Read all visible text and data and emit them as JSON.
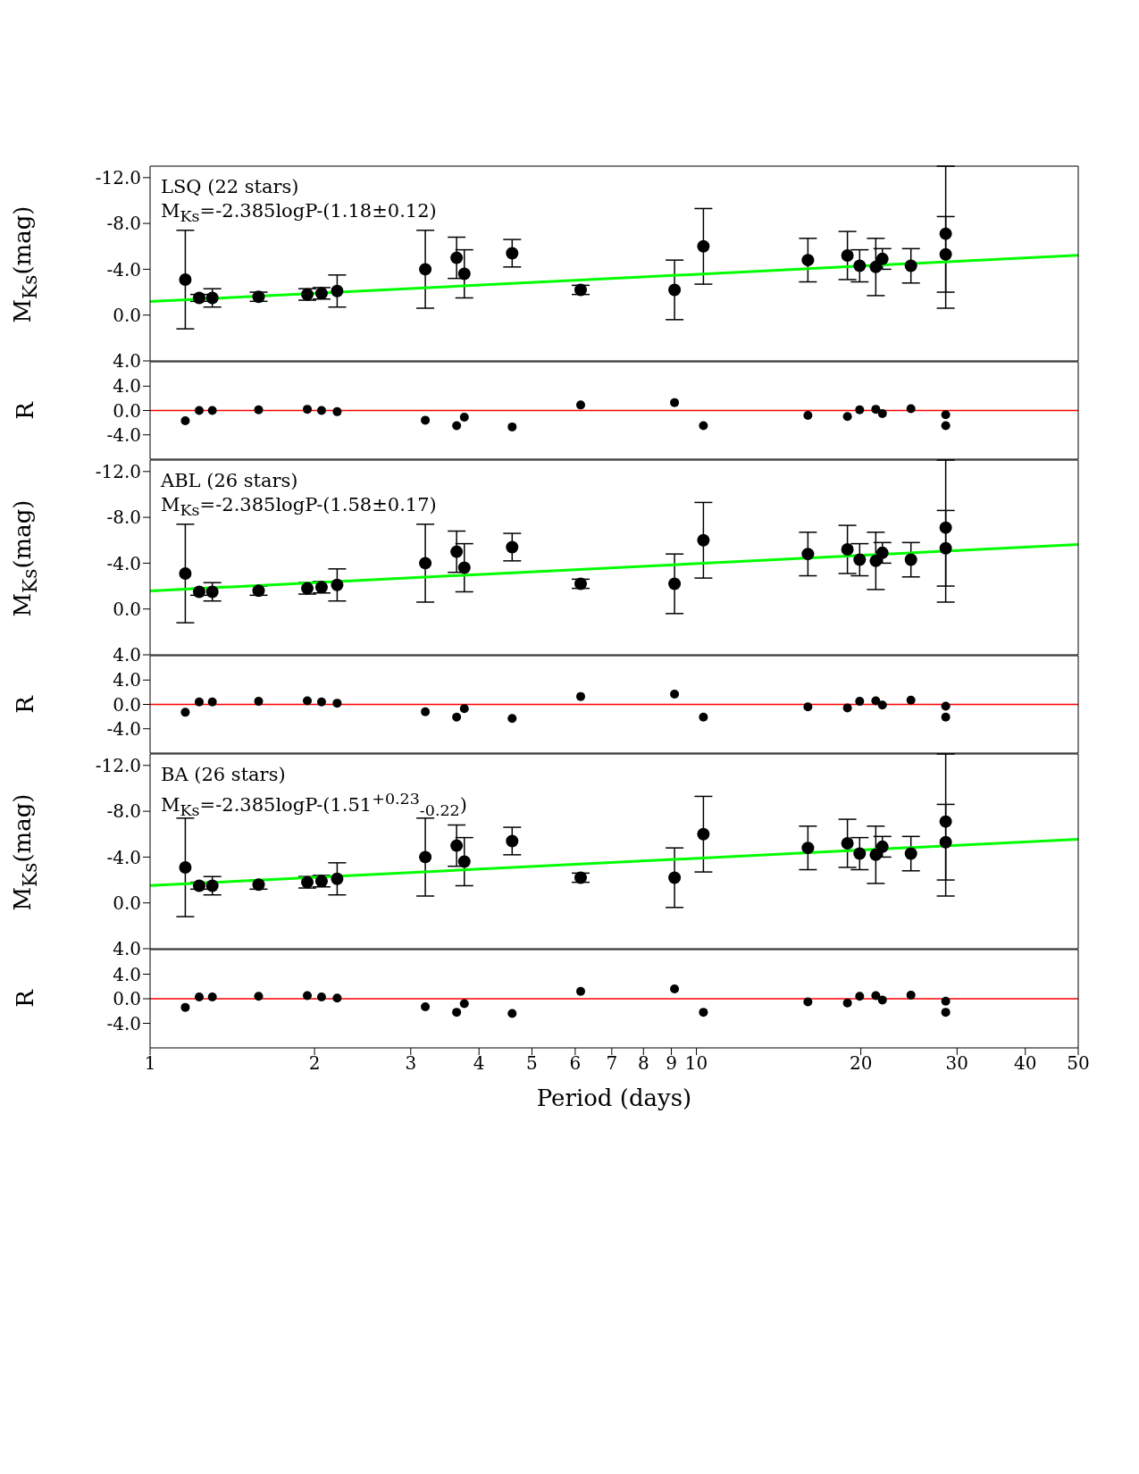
{
  "chart_data": [
    {
      "type": "scatter",
      "ylabel": "M$_{Ks}$(mag)",
      "log": "x",
      "tick_labels": "y",
      "xlim": [
        1,
        50
      ],
      "xticks": [
        1,
        2,
        3,
        4,
        5,
        6,
        7,
        8,
        9,
        10,
        20,
        30,
        40,
        50
      ],
      "ylim": [
        4,
        -13
      ],
      "yticks": [
        {
          "value": -12,
          "label": "-12.0"
        },
        {
          "value": -8,
          "label": "-8.0"
        },
        {
          "value": -4,
          "label": "-4.0"
        },
        {
          "value": 0,
          "label": "0.0"
        },
        {
          "value": 4,
          "label": "4.0"
        }
      ],
      "annotations": [
        "LSQ (22 stars)",
        "M$_{Ks}$=-2.385logP-(1.18±0.12)"
      ],
      "series": [
        {
          "color": "#000000",
          "marker": "circle",
          "x": [
            1.16,
            1.23,
            1.3,
            1.58,
            1.94,
            2.06,
            2.2,
            3.19,
            3.64,
            3.76,
            4.6,
            6.14,
            9.12,
            10.3,
            16.0,
            18.9,
            19.9,
            21.3,
            21.9,
            24.7,
            28.6,
            28.6
          ],
          "values": [
            -3.1,
            -1.5,
            -1.5,
            -1.6,
            -1.8,
            -1.9,
            -2.1,
            -4.0,
            -5.0,
            -3.6,
            -5.4,
            -2.2,
            -2.2,
            -6.0,
            -4.8,
            -5.2,
            -4.3,
            -4.2,
            -4.9,
            -4.3,
            -7.1,
            -5.3
          ],
          "errors": [
            4.3,
            0.3,
            0.8,
            0.4,
            0.5,
            0.5,
            1.4,
            3.4,
            1.8,
            2.1,
            1.2,
            0.4,
            2.6,
            3.3,
            1.9,
            2.1,
            1.4,
            2.5,
            0.9,
            1.5,
            [
              -13,
              -0.6
            ],
            3.3
          ]
        },
        {
          "type": "line",
          "marker": "none",
          "color": "#00ff00",
          "x": [
            1,
            50
          ],
          "values": [
            -1.18,
            -5.23
          ]
        }
      ]
    },
    {
      "type": "scatter",
      "ylabel": "R",
      "log": "x",
      "tick_labels": "y",
      "xlim": [
        1,
        50
      ],
      "xticks": [
        1,
        2,
        3,
        4,
        5,
        6,
        7,
        8,
        9,
        10,
        20,
        30,
        40,
        50
      ],
      "ylim": [
        -8,
        8
      ],
      "yticks": [
        {
          "value": -4,
          "label": "-4.0"
        },
        {
          "value": 0,
          "label": "0.0"
        },
        {
          "value": 4,
          "label": "4.0"
        }
      ],
      "ref_lines": [
        {
          "axis": "y",
          "value": 0,
          "color": "#ff0000"
        }
      ],
      "series": [
        {
          "color": "#000000",
          "marker": "circle",
          "x": [
            1.16,
            1.23,
            1.3,
            1.58,
            1.94,
            2.06,
            2.2,
            3.19,
            3.64,
            3.76,
            4.6,
            6.14,
            9.12,
            10.3,
            16.0,
            18.9,
            19.9,
            21.3,
            21.9,
            24.7,
            28.6,
            28.6
          ],
          "values": [
            -1.7,
            0.0,
            0.0,
            0.1,
            0.2,
            0.0,
            -0.2,
            -1.6,
            -2.5,
            -1.1,
            -2.7,
            0.9,
            1.3,
            -2.5,
            -0.8,
            -1.0,
            0.1,
            0.2,
            -0.5,
            0.3,
            -2.5,
            -0.7
          ]
        }
      ]
    },
    {
      "type": "scatter",
      "ylabel": "M$_{Ks}$(mag)",
      "log": "x",
      "tick_labels": "y",
      "xlim": [
        1,
        50
      ],
      "xticks": [
        1,
        2,
        3,
        4,
        5,
        6,
        7,
        8,
        9,
        10,
        20,
        30,
        40,
        50
      ],
      "ylim": [
        4,
        -13
      ],
      "yticks": [
        {
          "value": -12,
          "label": "-12.0"
        },
        {
          "value": -8,
          "label": "-8.0"
        },
        {
          "value": -4,
          "label": "-4.0"
        },
        {
          "value": 0,
          "label": "0.0"
        },
        {
          "value": 4,
          "label": "4.0"
        }
      ],
      "annotations": [
        "ABL (26 stars)",
        "M$_{Ks}$=-2.385logP-(1.58±0.17)"
      ],
      "series": [
        {
          "color": "#000000",
          "marker": "circle",
          "x": [
            1.16,
            1.23,
            1.3,
            1.58,
            1.94,
            2.06,
            2.2,
            3.19,
            3.64,
            3.76,
            4.6,
            6.14,
            9.12,
            10.3,
            16.0,
            18.9,
            19.9,
            21.3,
            21.9,
            24.7,
            28.6,
            28.6
          ],
          "values": [
            -3.1,
            -1.5,
            -1.5,
            -1.6,
            -1.8,
            -1.9,
            -2.1,
            -4.0,
            -5.0,
            -3.6,
            -5.4,
            -2.2,
            -2.2,
            -6.0,
            -4.8,
            -5.2,
            -4.3,
            -4.2,
            -4.9,
            -4.3,
            -7.1,
            -5.3
          ],
          "errors": [
            4.3,
            0.3,
            0.8,
            0.4,
            0.5,
            0.5,
            1.4,
            3.4,
            1.8,
            2.1,
            1.2,
            0.4,
            2.6,
            3.3,
            1.9,
            2.1,
            1.4,
            2.5,
            0.9,
            1.5,
            [
              -13,
              -0.6
            ],
            3.3
          ]
        },
        {
          "type": "line",
          "marker": "none",
          "color": "#00ff00",
          "x": [
            1,
            50
          ],
          "values": [
            -1.58,
            -5.63
          ]
        }
      ]
    },
    {
      "type": "scatter",
      "ylabel": "R",
      "log": "x",
      "tick_labels": "y",
      "xlim": [
        1,
        50
      ],
      "xticks": [
        1,
        2,
        3,
        4,
        5,
        6,
        7,
        8,
        9,
        10,
        20,
        30,
        40,
        50
      ],
      "ylim": [
        -8,
        8
      ],
      "yticks": [
        {
          "value": -4,
          "label": "-4.0"
        },
        {
          "value": 0,
          "label": "0.0"
        },
        {
          "value": 4,
          "label": "4.0"
        }
      ],
      "ref_lines": [
        {
          "axis": "y",
          "value": 0,
          "color": "#ff0000"
        }
      ],
      "series": [
        {
          "color": "#000000",
          "marker": "circle",
          "x": [
            1.16,
            1.23,
            1.3,
            1.58,
            1.94,
            2.06,
            2.2,
            3.19,
            3.64,
            3.76,
            4.6,
            6.14,
            9.12,
            10.3,
            16.0,
            18.9,
            19.9,
            21.3,
            21.9,
            24.7,
            28.6,
            28.6
          ],
          "values": [
            -1.3,
            0.4,
            0.4,
            0.5,
            0.6,
            0.4,
            0.2,
            -1.2,
            -2.1,
            -0.7,
            -2.3,
            1.3,
            1.7,
            -2.1,
            -0.4,
            -0.6,
            0.5,
            0.6,
            -0.1,
            0.7,
            -2.1,
            -0.3
          ]
        }
      ]
    },
    {
      "type": "scatter",
      "ylabel": "M$_{Ks}$(mag)",
      "log": "x",
      "tick_labels": "y",
      "xlim": [
        1,
        50
      ],
      "xticks": [
        1,
        2,
        3,
        4,
        5,
        6,
        7,
        8,
        9,
        10,
        20,
        30,
        40,
        50
      ],
      "ylim": [
        4,
        -13
      ],
      "yticks": [
        {
          "value": -12,
          "label": "-12.0"
        },
        {
          "value": -8,
          "label": "-8.0"
        },
        {
          "value": -4,
          "label": "-4.0"
        },
        {
          "value": 0,
          "label": "0.0"
        },
        {
          "value": 4,
          "label": "4.0"
        }
      ],
      "annotations": [
        "BA (26 stars)",
        "M$_{Ks}$=-2.385logP-(1.51$^{+0.23}$$_{-0.22}$)"
      ],
      "series": [
        {
          "color": "#000000",
          "marker": "circle",
          "x": [
            1.16,
            1.23,
            1.3,
            1.58,
            1.94,
            2.06,
            2.2,
            3.19,
            3.64,
            3.76,
            4.6,
            6.14,
            9.12,
            10.3,
            16.0,
            18.9,
            19.9,
            21.3,
            21.9,
            24.7,
            28.6,
            28.6
          ],
          "values": [
            -3.1,
            -1.5,
            -1.5,
            -1.6,
            -1.8,
            -1.9,
            -2.1,
            -4.0,
            -5.0,
            -3.6,
            -5.4,
            -2.2,
            -2.2,
            -6.0,
            -4.8,
            -5.2,
            -4.3,
            -4.2,
            -4.9,
            -4.3,
            -7.1,
            -5.3
          ],
          "errors": [
            4.3,
            0.3,
            0.8,
            0.4,
            0.5,
            0.5,
            1.4,
            3.4,
            1.8,
            2.1,
            1.2,
            0.4,
            2.6,
            3.3,
            1.9,
            2.1,
            1.4,
            2.5,
            0.9,
            1.5,
            [
              -13,
              -0.6
            ],
            3.3
          ]
        },
        {
          "type": "line",
          "marker": "none",
          "color": "#00ff00",
          "x": [
            1,
            50
          ],
          "values": [
            -1.51,
            -5.56
          ]
        }
      ]
    },
    {
      "type": "scatter",
      "ylabel": "R",
      "xlabel": "Period (days)",
      "log": "x",
      "xlim": [
        1,
        50
      ],
      "xticks": [
        1,
        2,
        3,
        4,
        5,
        6,
        7,
        8,
        9,
        10,
        20,
        30,
        40,
        50
      ],
      "ylim": [
        -8,
        8
      ],
      "yticks": [
        {
          "value": -4,
          "label": "-4.0"
        },
        {
          "value": 0,
          "label": "0.0"
        },
        {
          "value": 4,
          "label": "4.0"
        }
      ],
      "ref_lines": [
        {
          "axis": "y",
          "value": 0,
          "color": "#ff0000"
        }
      ],
      "series": [
        {
          "color": "#000000",
          "marker": "circle",
          "x": [
            1.16,
            1.23,
            1.3,
            1.58,
            1.94,
            2.06,
            2.2,
            3.19,
            3.64,
            3.76,
            4.6,
            6.14,
            9.12,
            10.3,
            16.0,
            18.9,
            19.9,
            21.3,
            21.9,
            24.7,
            28.6,
            28.6
          ],
          "values": [
            -1.4,
            0.3,
            0.3,
            0.4,
            0.5,
            0.3,
            0.1,
            -1.3,
            -2.2,
            -0.8,
            -2.4,
            1.2,
            1.6,
            -2.2,
            -0.5,
            -0.7,
            0.4,
            0.5,
            -0.2,
            0.6,
            -2.2,
            -0.4
          ]
        }
      ]
    }
  ]
}
